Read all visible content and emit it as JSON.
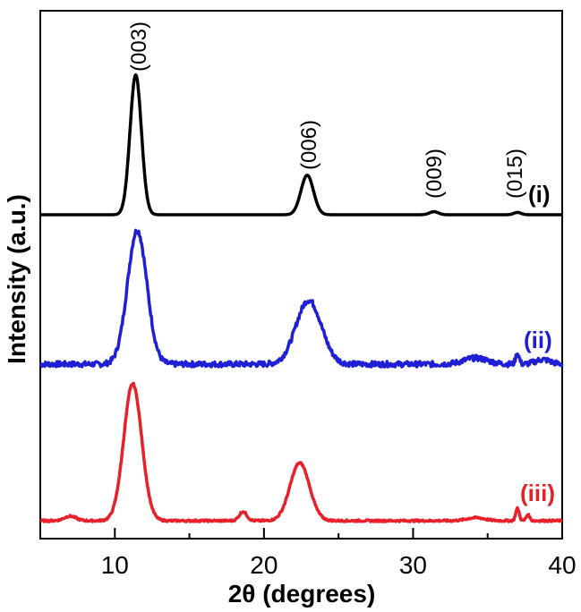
{
  "chart_data": {
    "type": "line",
    "title": "",
    "xlabel": "2θ (degrees)",
    "ylabel": "Intensity (a.u.)",
    "xlim": [
      5,
      40
    ],
    "x_ticks": [
      "10",
      "20",
      "30",
      "40"
    ],
    "y_ticks": [],
    "colors": {
      "i": "#000000",
      "ii": "#1f1fd6",
      "iii": "#e8202a"
    },
    "annotations": [
      {
        "text": "(003)",
        "x": 11.4
      },
      {
        "text": "(006)",
        "x": 22.9
      },
      {
        "text": "(009)",
        "x": 31.5
      },
      {
        "text": "(015)",
        "x": 37.0
      }
    ],
    "series": [
      {
        "name": "(i)",
        "color": "#000000",
        "baseline": 0.0,
        "noise": 0.0,
        "peaks": [
          {
            "x": 11.4,
            "height": 0.92,
            "width": 0.38
          },
          {
            "x": 22.9,
            "height": 0.26,
            "width": 0.42
          },
          {
            "x": 31.4,
            "height": 0.02,
            "width": 0.3
          },
          {
            "x": 37.0,
            "height": 0.015,
            "width": 0.25
          }
        ]
      },
      {
        "name": "(ii)",
        "color": "#1f1fd6",
        "baseline": 0.0,
        "noise": 0.018,
        "peaks": [
          {
            "x": 11.5,
            "height": 0.88,
            "width": 0.65
          },
          {
            "x": 23.0,
            "height": 0.42,
            "width": 0.85
          },
          {
            "x": 34.2,
            "height": 0.04,
            "width": 0.8
          },
          {
            "x": 37.0,
            "height": 0.07,
            "width": 0.12
          },
          {
            "x": 38.7,
            "height": 0.03,
            "width": 0.5
          }
        ]
      },
      {
        "name": "(iii)",
        "color": "#e8202a",
        "baseline": 0.0,
        "noise": 0.006,
        "peaks": [
          {
            "x": 7.0,
            "height": 0.03,
            "width": 0.4
          },
          {
            "x": 11.2,
            "height": 0.9,
            "width": 0.6
          },
          {
            "x": 18.6,
            "height": 0.06,
            "width": 0.25
          },
          {
            "x": 22.4,
            "height": 0.38,
            "width": 0.65
          },
          {
            "x": 34.2,
            "height": 0.02,
            "width": 0.6
          },
          {
            "x": 37.0,
            "height": 0.08,
            "width": 0.12
          },
          {
            "x": 37.7,
            "height": 0.04,
            "width": 0.12
          }
        ]
      }
    ]
  }
}
